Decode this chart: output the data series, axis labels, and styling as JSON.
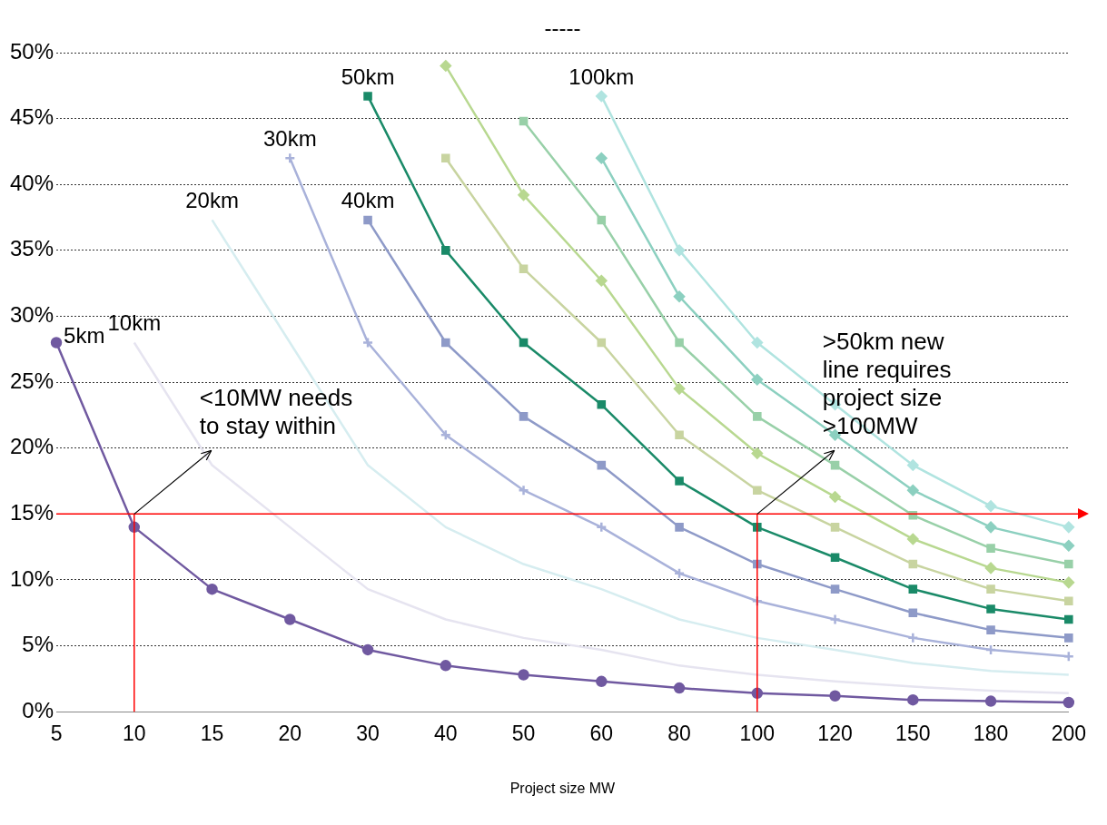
{
  "chart_data": {
    "type": "line",
    "xlabel": "Project size MW",
    "categories": [
      "5",
      "10",
      "15",
      "20",
      "30",
      "40",
      "50",
      "60",
      "80",
      "100",
      "120",
      "150",
      "180",
      "200"
    ],
    "ylim": [
      0,
      50
    ],
    "yticks": [
      {
        "value": 0,
        "label": "0%"
      },
      {
        "value": 5,
        "label": "5%"
      },
      {
        "value": 10,
        "label": "10%"
      },
      {
        "value": 15,
        "label": "15%"
      },
      {
        "value": 20,
        "label": "20%"
      },
      {
        "value": 25,
        "label": "25%"
      },
      {
        "value": 30,
        "label": "30%"
      },
      {
        "value": 35,
        "label": "35%"
      },
      {
        "value": 40,
        "label": "40%"
      },
      {
        "value": 45,
        "label": "45%"
      },
      {
        "value": 50,
        "label": "50%"
      }
    ],
    "grid": "y",
    "legend": false,
    "series": [
      {
        "name": "5km",
        "color": "#7059a0",
        "marker": "circle",
        "values": [
          28,
          14,
          9.3,
          7,
          4.7,
          3.5,
          2.8,
          2.3,
          1.8,
          1.4,
          1.2,
          0.9,
          0.8,
          0.7
        ]
      },
      {
        "name": "10km",
        "color": "#e6e4f0",
        "marker": "none",
        "values": [
          null,
          28,
          18.7,
          14,
          9.3,
          7,
          5.6,
          4.7,
          3.5,
          2.8,
          2.3,
          1.9,
          1.6,
          1.4
        ]
      },
      {
        "name": "20km",
        "color": "#d6edf0",
        "marker": "none",
        "values": [
          null,
          null,
          37.3,
          28,
          18.7,
          14,
          11.2,
          9.3,
          7,
          5.6,
          4.7,
          3.7,
          3.1,
          2.8
        ]
      },
      {
        "name": "30km",
        "color": "#a9b2da",
        "marker": "cross",
        "values": [
          null,
          null,
          null,
          42,
          28,
          21,
          16.8,
          14,
          10.5,
          8.4,
          7,
          5.6,
          4.7,
          4.2
        ]
      },
      {
        "name": "40km",
        "color": "#8e9ac8",
        "marker": "square",
        "values": [
          null,
          null,
          null,
          null,
          37.3,
          28,
          22.4,
          18.7,
          14,
          11.2,
          9.3,
          7.5,
          6.2,
          5.6
        ]
      },
      {
        "name": "50km",
        "color": "#1a8a68",
        "marker": "square",
        "values": [
          null,
          null,
          null,
          null,
          46.7,
          35,
          28,
          23.3,
          17.5,
          14,
          11.7,
          9.3,
          7.8,
          7
        ]
      },
      {
        "color": "#c8d4a0",
        "marker": "square",
        "values": [
          null,
          null,
          null,
          null,
          null,
          42,
          33.6,
          28,
          21,
          16.8,
          14,
          11.2,
          9.3,
          8.4
        ]
      },
      {
        "color": "#b8d890",
        "marker": "diamond",
        "values": [
          null,
          null,
          null,
          null,
          null,
          49,
          39.2,
          32.7,
          24.5,
          19.6,
          16.3,
          13.1,
          10.9,
          9.8
        ]
      },
      {
        "color": "#98d0a8",
        "marker": "square",
        "values": [
          null,
          null,
          null,
          null,
          null,
          null,
          44.8,
          37.3,
          28,
          22.4,
          18.7,
          14.9,
          12.4,
          11.2
        ]
      },
      {
        "color": "#8cd0c0",
        "marker": "diamond",
        "values": [
          null,
          null,
          null,
          null,
          null,
          null,
          null,
          42,
          31.5,
          25.2,
          21,
          16.8,
          14,
          12.6
        ]
      },
      {
        "name": "100km",
        "color": "#b0e4e0",
        "marker": "diamond",
        "values": [
          null,
          null,
          null,
          null,
          null,
          null,
          null,
          46.7,
          35,
          28,
          23.3,
          18.7,
          15.6,
          14
        ]
      }
    ],
    "ref_lines": [
      {
        "axis": "y",
        "value": 15,
        "color": "#ff0000"
      },
      {
        "axis": "x",
        "value": "10",
        "color": "#ff0000"
      },
      {
        "axis": "x",
        "value": "100",
        "color": "#ff0000"
      }
    ],
    "annotations": [
      "-----",
      {
        "text": "<10MW needs to stay within",
        "x": "10",
        "y": 15
      },
      {
        "text": ">50km new line requires project size >100MW",
        "x": "100",
        "y": 15
      }
    ]
  }
}
